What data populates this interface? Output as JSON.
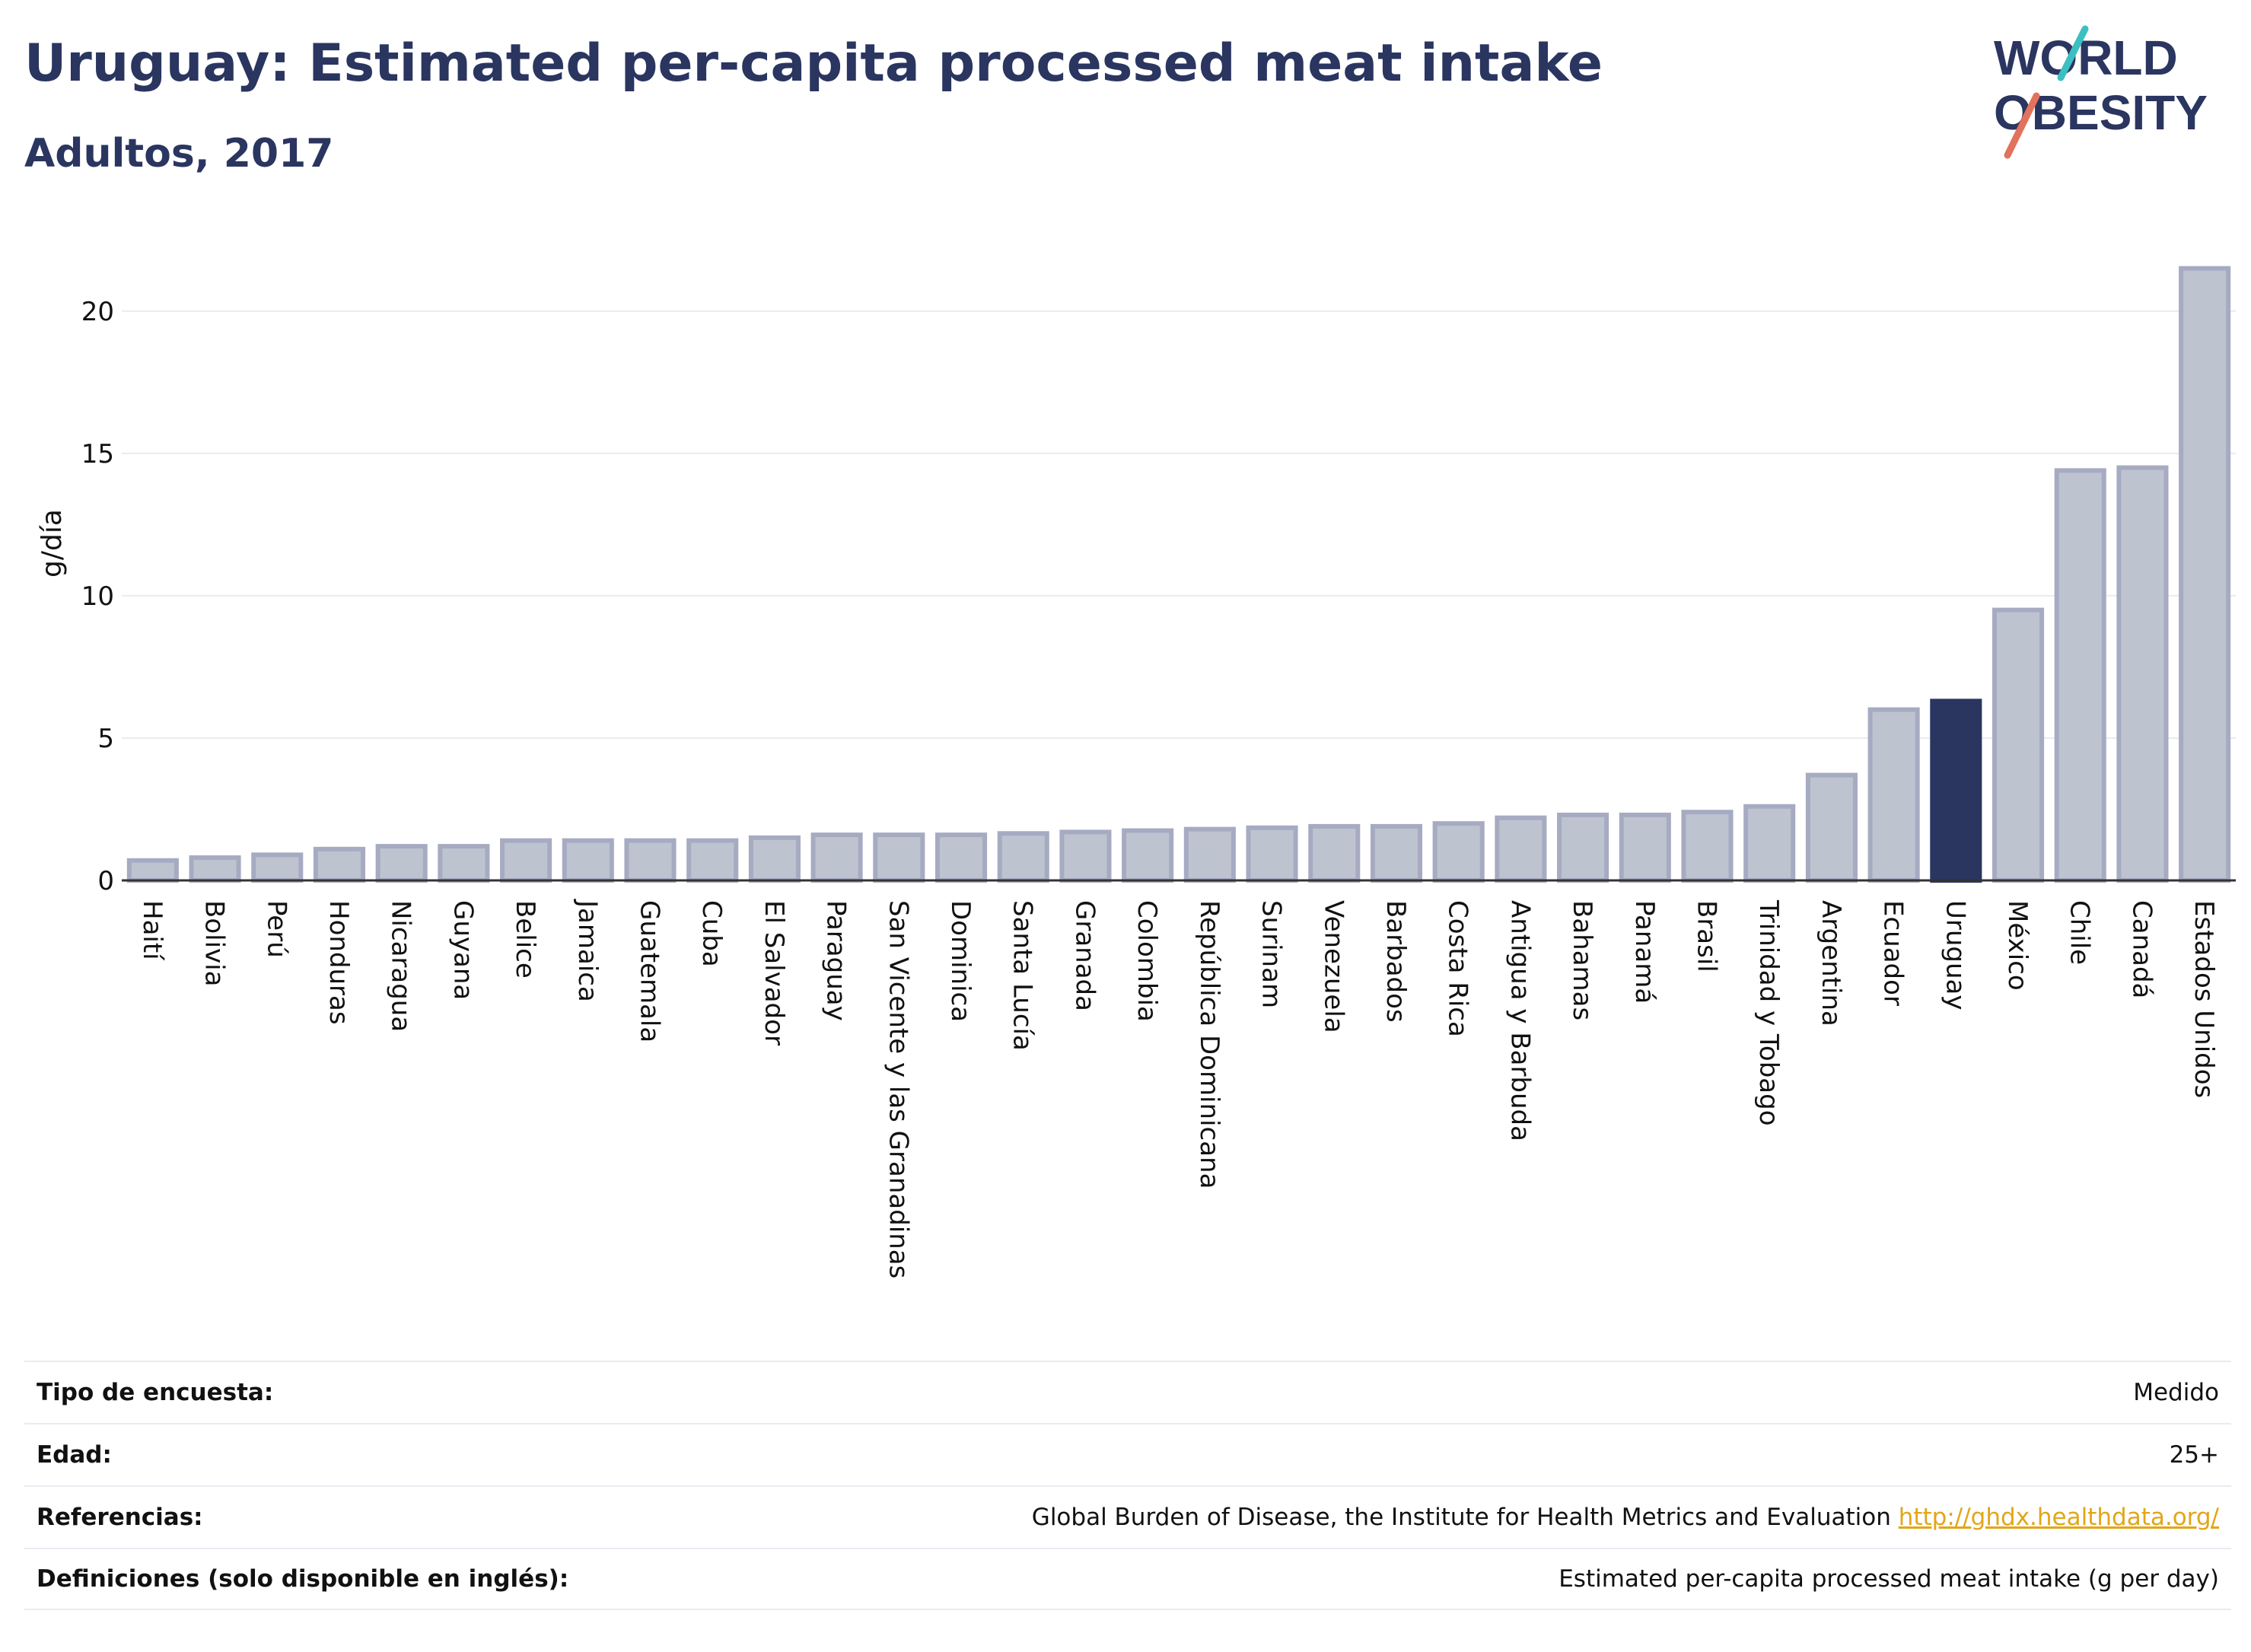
{
  "header": {
    "title": "Uruguay: Estimated per-capita processed meat intake",
    "subtitle": "Adultos, 2017"
  },
  "logo": {
    "line1": "WORLD",
    "line2": "OBESITY"
  },
  "colors": {
    "bar": "#bec3d0",
    "bar_border": "#a6abc2",
    "highlight": "#2a3560",
    "grid": "#e8ebf0",
    "link": "#e1a619"
  },
  "chart_data": {
    "type": "bar",
    "ylabel": "g/día",
    "xlabel": "",
    "ylim": [
      0,
      22
    ],
    "yticks": [
      0,
      5,
      10,
      15,
      20
    ],
    "grid": true,
    "highlight": "Uruguay",
    "categories": [
      "Haití",
      "Bolivia",
      "Perú",
      "Honduras",
      "Nicaragua",
      "Guyana",
      "Belice",
      "Jamaica",
      "Guatemala",
      "Cuba",
      "El Salvador",
      "Paraguay",
      "San Vicente y las Granadinas",
      "Dominica",
      "Santa Lucía",
      "Granada",
      "Colombia",
      "República Dominicana",
      "Surinam",
      "Venezuela",
      "Barbados",
      "Costa Rica",
      "Antigua y Barbuda",
      "Bahamas",
      "Panamá",
      "Brasil",
      "Trinidad y Tobago",
      "Argentina",
      "Ecuador",
      "Uruguay",
      "México",
      "Chile",
      "Canadá",
      "Estados Unidos"
    ],
    "values": [
      0.7,
      0.8,
      0.9,
      1.1,
      1.2,
      1.2,
      1.4,
      1.4,
      1.4,
      1.4,
      1.5,
      1.6,
      1.6,
      1.6,
      1.65,
      1.7,
      1.75,
      1.8,
      1.85,
      1.9,
      1.9,
      2.0,
      2.2,
      2.3,
      2.3,
      2.4,
      2.6,
      3.7,
      6.0,
      6.3,
      9.5,
      14.4,
      14.5,
      21.5
    ]
  },
  "meta": [
    {
      "label": "Tipo de encuesta:",
      "value": "Medido"
    },
    {
      "label": "Edad:",
      "value": "25+"
    },
    {
      "label": "Referencias:",
      "value": "Global Burden of Disease, the Institute for Health Metrics and Evaluation",
      "link": "http://ghdx.healthdata.org/"
    },
    {
      "label": "Definiciones (solo disponible en inglés):",
      "value": "Estimated per-capita processed meat intake (g per day)"
    }
  ]
}
